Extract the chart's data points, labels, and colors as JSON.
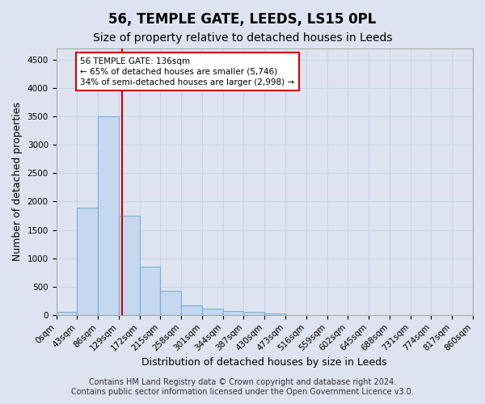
{
  "title": "56, TEMPLE GATE, LEEDS, LS15 0PL",
  "subtitle": "Size of property relative to detached houses in Leeds",
  "xlabel": "Distribution of detached houses by size in Leeds",
  "ylabel": "Number of detached properties",
  "bin_labels": [
    "0sqm",
    "43sqm",
    "86sqm",
    "129sqm",
    "172sqm",
    "215sqm",
    "258sqm",
    "301sqm",
    "344sqm",
    "387sqm",
    "430sqm",
    "473sqm",
    "516sqm",
    "559sqm",
    "602sqm",
    "645sqm",
    "688sqm",
    "731sqm",
    "774sqm",
    "817sqm",
    "860sqm"
  ],
  "bin_edges": [
    0,
    43,
    86,
    129,
    172,
    215,
    258,
    301,
    344,
    387,
    430,
    473,
    516,
    559,
    602,
    645,
    688,
    731,
    774,
    817,
    860
  ],
  "bar_values": [
    50,
    1900,
    3500,
    1750,
    850,
    430,
    175,
    110,
    70,
    50,
    25,
    0,
    0,
    0,
    0,
    0,
    0,
    0,
    0,
    0
  ],
  "bar_color": "#c5d8ef",
  "bar_edge_color": "#7aaed6",
  "grid_color": "#c8d4e8",
  "red_line_x": 136,
  "red_line_color": "#cc0000",
  "annotation_line1": "56 TEMPLE GATE: 136sqm",
  "annotation_line2": "← 65% of detached houses are smaller (5,746)",
  "annotation_line3": "34% of semi-detached houses are larger (2,998) →",
  "annotation_box_color": "#ffffff",
  "annotation_box_edge": "#cc0000",
  "ylim": [
    0,
    4700
  ],
  "yticks": [
    0,
    500,
    1000,
    1500,
    2000,
    2500,
    3000,
    3500,
    4000,
    4500
  ],
  "footer_line1": "Contains HM Land Registry data © Crown copyright and database right 2024.",
  "footer_line2": "Contains public sector information licensed under the Open Government Licence v3.0.",
  "bg_color": "#dde4f0",
  "plot_bg_color": "#dde4f0",
  "title_fontsize": 12,
  "subtitle_fontsize": 10,
  "axis_label_fontsize": 9,
  "tick_fontsize": 7.5,
  "footer_fontsize": 7
}
